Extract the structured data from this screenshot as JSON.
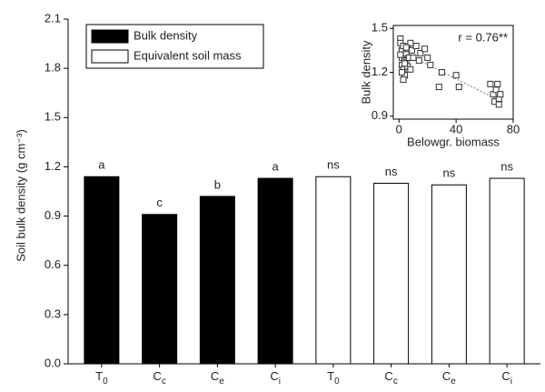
{
  "chart_data": [
    {
      "type": "bar",
      "ylabel": "Soil bulk density (g cm⁻³)",
      "categories": [
        "T0",
        "Cc",
        "Ce",
        "Ci",
        "T0",
        "Cc",
        "Ce",
        "Ci"
      ],
      "series": [
        {
          "name": "Bulk density",
          "color": "#000000",
          "values": [
            1.14,
            0.91,
            1.02,
            1.13,
            null,
            null,
            null,
            null
          ]
        },
        {
          "name": "Equivalent soil mass",
          "color": "#ffffff",
          "values": [
            null,
            null,
            null,
            null,
            1.14,
            1.1,
            1.09,
            1.13
          ]
        }
      ],
      "significance_labels": [
        "a",
        "c",
        "b",
        "a",
        "ns",
        "ns",
        "ns",
        "ns"
      ],
      "ylim": [
        0,
        2.1
      ],
      "yticks": [
        {
          "value": 0,
          "label": "0.0"
        },
        0.3,
        0.6,
        0.9,
        1.2,
        1.5,
        1.8,
        2.1
      ],
      "legend": "upper left"
    },
    {
      "type": "scatter",
      "xlabel": "Belowgr. biomass",
      "ylabel": "Bulk density",
      "annotation": "r = 0.76**",
      "x": [
        1,
        1,
        2,
        2,
        2,
        3,
        3,
        3,
        4,
        4,
        5,
        5,
        6,
        6,
        7,
        8,
        9,
        10,
        12,
        14,
        15,
        18,
        20,
        22,
        28,
        30,
        40,
        42,
        64,
        66,
        67,
        68,
        69,
        70,
        70,
        71,
        2,
        3,
        4,
        1,
        5,
        8
      ],
      "values": [
        1.43,
        1.4,
        1.35,
        1.3,
        1.25,
        1.38,
        1.32,
        1.22,
        1.28,
        1.18,
        1.33,
        1.27,
        1.36,
        1.24,
        1.3,
        1.4,
        1.35,
        1.3,
        1.38,
        1.28,
        1.33,
        1.36,
        1.3,
        1.25,
        1.1,
        1.2,
        1.18,
        1.1,
        1.12,
        1.05,
        1.0,
        1.08,
        1.12,
        0.98,
        1.02,
        1.05,
        1.2,
        1.15,
        1.26,
        1.32,
        1.37,
        1.22
      ],
      "trendline": {
        "x": [
          0,
          70
        ],
        "y": [
          1.35,
          1.01
        ]
      },
      "xlim": [
        -4,
        80
      ],
      "xticks": [
        0,
        40,
        80
      ],
      "ylim": [
        0.88,
        1.52
      ],
      "yticks": [
        0.9,
        1.2,
        1.5
      ]
    }
  ]
}
